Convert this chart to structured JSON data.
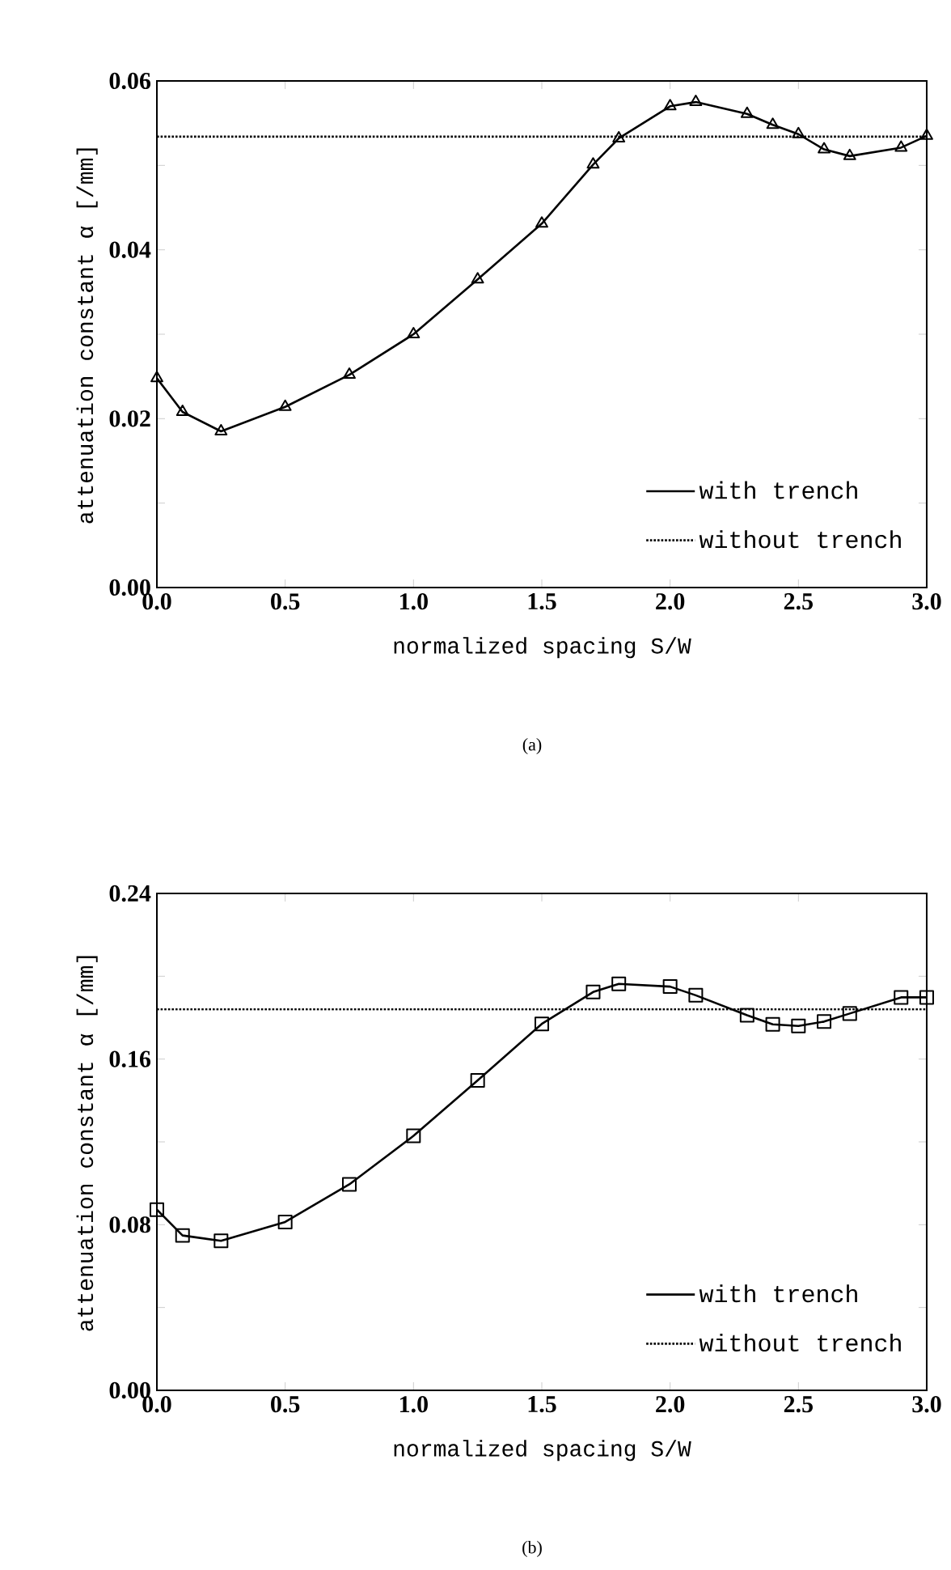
{
  "chart_data": [
    {
      "type": "line",
      "xlabel": "normalized spacing S/W",
      "ylabel": "attenuation constant α [/mm]",
      "annotations": [
        "(a)"
      ],
      "xlim": [
        0,
        3
      ],
      "ylim": [
        0,
        0.06
      ],
      "xticks": [
        {
          "value": 0,
          "label": "0.0"
        },
        {
          "value": 0.5,
          "label": "0.5"
        },
        {
          "value": 1,
          "label": "1.0"
        },
        {
          "value": 1.5,
          "label": "1.5"
        },
        {
          "value": 2,
          "label": "2.0"
        },
        {
          "value": 2.5,
          "label": "2.5"
        },
        {
          "value": 3,
          "label": "3.0"
        }
      ],
      "yticks": [
        {
          "value": 0,
          "label": "0.00"
        },
        {
          "value": 0.01,
          "label": null
        },
        {
          "value": 0.02,
          "label": "0.02"
        },
        {
          "value": 0.03,
          "label": null
        },
        {
          "value": 0.04,
          "label": "0.04"
        },
        {
          "value": 0.05,
          "label": null
        },
        {
          "value": 0.06,
          "label": "0.06"
        }
      ],
      "legend": "bottom right",
      "grid": false,
      "series": [
        {
          "name": "with trench",
          "color": "#000000",
          "marker": "triangle",
          "line_style": "solid",
          "x": [
            0,
            0.1,
            0.25,
            0.5,
            0.75,
            1.0,
            1.25,
            1.5,
            1.7,
            1.8,
            2.0,
            2.1,
            2.3,
            2.4,
            2.5,
            2.6,
            2.7,
            2.9,
            3.0
          ],
          "values": [
            0.0248,
            0.0208,
            0.0185,
            0.0214,
            0.0252,
            0.03,
            0.0365,
            0.0431,
            0.0501,
            0.0532,
            0.057,
            0.0575,
            0.0561,
            0.0548,
            0.0537,
            0.0519,
            0.0511,
            0.0521,
            0.0535
          ]
        },
        {
          "name": "without trench",
          "color": "#000000",
          "marker": "none",
          "line_style": "dotted",
          "x": [
            0,
            3
          ],
          "values": [
            0.0534,
            0.0534
          ]
        }
      ]
    },
    {
      "type": "line",
      "xlabel": "normalized spacing S/W",
      "ylabel": "attenuation constant α [/mm]",
      "annotations": [
        "(b)"
      ],
      "xlim": [
        0,
        3
      ],
      "ylim": [
        0,
        0.24
      ],
      "xticks": [
        {
          "value": 0,
          "label": "0.0"
        },
        {
          "value": 0.5,
          "label": "0.5"
        },
        {
          "value": 1,
          "label": "1.0"
        },
        {
          "value": 1.5,
          "label": "1.5"
        },
        {
          "value": 2,
          "label": "2.0"
        },
        {
          "value": 2.5,
          "label": "2.5"
        },
        {
          "value": 3,
          "label": "3.0"
        }
      ],
      "yticks": [
        {
          "value": 0,
          "label": "0.00"
        },
        {
          "value": 0.04,
          "label": null
        },
        {
          "value": 0.08,
          "label": "0.08"
        },
        {
          "value": 0.12,
          "label": null
        },
        {
          "value": 0.16,
          "label": "0.16"
        },
        {
          "value": 0.2,
          "label": null
        },
        {
          "value": 0.24,
          "label": "0.24"
        }
      ],
      "legend": "bottom right",
      "grid": false,
      "series": [
        {
          "name": "with trench",
          "color": "#000000",
          "marker": "square",
          "line_style": "solid",
          "x": [
            0,
            0.1,
            0.25,
            0.5,
            0.75,
            1.0,
            1.25,
            1.5,
            1.7,
            1.8,
            2.0,
            2.1,
            2.3,
            2.4,
            2.5,
            2.6,
            2.7,
            2.9,
            3.0
          ],
          "values": [
            0.0873,
            0.0748,
            0.0722,
            0.0813,
            0.0995,
            0.1229,
            0.1497,
            0.177,
            0.1924,
            0.1963,
            0.195,
            0.1908,
            0.1812,
            0.1768,
            0.176,
            0.1781,
            0.182,
            0.1898,
            0.1898
          ]
        },
        {
          "name": "without trench",
          "color": "#000000",
          "marker": "none",
          "line_style": "dotted",
          "x": [
            0,
            3
          ],
          "values": [
            0.184,
            0.184
          ]
        }
      ]
    }
  ]
}
